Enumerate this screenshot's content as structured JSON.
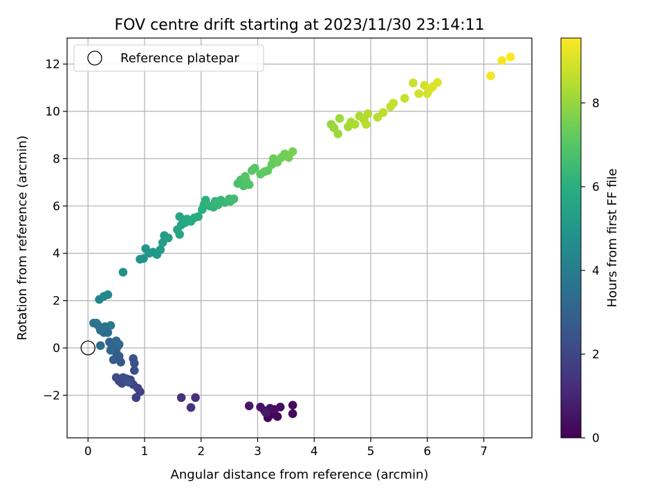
{
  "chart_data": {
    "type": "scatter",
    "title": "FOV centre drift starting at 2023/11/30 23:14:11",
    "xlabel": "Angular distance from reference (arcmin)",
    "ylabel": "Rotation from reference (arcmin)",
    "xlim": [
      -0.37,
      7.85
    ],
    "ylim": [
      -3.8,
      13.1
    ],
    "xticks": [
      0,
      1,
      2,
      3,
      4,
      5,
      6,
      7
    ],
    "yticks": [
      -2,
      0,
      2,
      4,
      6,
      8,
      10,
      12
    ],
    "ytick_labels": [
      "−2",
      "0",
      "2",
      "4",
      "6",
      "8",
      "10",
      "12"
    ],
    "grid": true,
    "legend": {
      "location": "top-left",
      "entries": [
        "Reference platepar"
      ]
    },
    "reference_point": {
      "x": 0,
      "y": 0,
      "marker": "open-circle"
    },
    "colorbar": {
      "label": "Hours from first FF file",
      "range": [
        0,
        9.55
      ],
      "ticks": [
        0,
        2,
        4,
        6,
        8
      ],
      "colormap": "viridis"
    },
    "points": [
      {
        "x": 3.18,
        "y": -2.95,
        "c": 0.05
      },
      {
        "x": 3.28,
        "y": -2.8,
        "c": 0.1
      },
      {
        "x": 3.35,
        "y": -2.9,
        "c": 0.15
      },
      {
        "x": 3.62,
        "y": -2.78,
        "c": 0.2
      },
      {
        "x": 3.62,
        "y": -2.42,
        "c": 0.25
      },
      {
        "x": 3.4,
        "y": -2.5,
        "c": 0.3
      },
      {
        "x": 3.3,
        "y": -2.6,
        "c": 0.35
      },
      {
        "x": 3.22,
        "y": -2.55,
        "c": 0.4
      },
      {
        "x": 3.12,
        "y": -2.65,
        "c": 0.45
      },
      {
        "x": 3.05,
        "y": -2.5,
        "c": 0.5
      },
      {
        "x": 2.85,
        "y": -2.45,
        "c": 0.6
      },
      {
        "x": 3.15,
        "y": -2.75,
        "c": 0.7
      },
      {
        "x": 1.9,
        "y": -2.1,
        "c": 1.3
      },
      {
        "x": 1.65,
        "y": -2.1,
        "c": 1.35
      },
      {
        "x": 1.82,
        "y": -2.52,
        "c": 1.4
      },
      {
        "x": 0.92,
        "y": -1.85,
        "c": 1.8
      },
      {
        "x": 0.85,
        "y": -2.1,
        "c": 1.85
      },
      {
        "x": 0.88,
        "y": -1.7,
        "c": 1.9
      },
      {
        "x": 0.8,
        "y": -1.55,
        "c": 2.0
      },
      {
        "x": 0.75,
        "y": -1.35,
        "c": 2.05
      },
      {
        "x": 0.68,
        "y": -1.3,
        "c": 2.1
      },
      {
        "x": 0.6,
        "y": -1.5,
        "c": 2.15
      },
      {
        "x": 0.55,
        "y": -1.4,
        "c": 2.2
      },
      {
        "x": 0.5,
        "y": -1.25,
        "c": 2.25
      },
      {
        "x": 0.62,
        "y": -1.25,
        "c": 2.3
      },
      {
        "x": 0.82,
        "y": -0.95,
        "c": 2.3
      },
      {
        "x": 0.82,
        "y": -0.65,
        "c": 2.35
      },
      {
        "x": 0.8,
        "y": -0.45,
        "c": 2.4
      },
      {
        "x": 0.72,
        "y": -1.45,
        "c": 2.4
      },
      {
        "x": 0.58,
        "y": -0.6,
        "c": 2.6
      },
      {
        "x": 0.55,
        "y": -0.35,
        "c": 2.7
      },
      {
        "x": 0.45,
        "y": -0.5,
        "c": 2.75
      },
      {
        "x": 0.5,
        "y": -0.2,
        "c": 2.8
      },
      {
        "x": 0.52,
        "y": 0.05,
        "c": 2.9
      },
      {
        "x": 0.48,
        "y": 0.25,
        "c": 3.0
      },
      {
        "x": 0.42,
        "y": 0.1,
        "c": 3.05
      },
      {
        "x": 0.38,
        "y": 0.25,
        "c": 3.1
      },
      {
        "x": 0.4,
        "y": -0.1,
        "c": 3.15
      },
      {
        "x": 0.5,
        "y": 0.3,
        "c": 3.2
      },
      {
        "x": 0.55,
        "y": 0.15,
        "c": 3.2
      },
      {
        "x": 0.22,
        "y": 0.1,
        "c": 3.3
      },
      {
        "x": 0.28,
        "y": 0.65,
        "c": 3.4
      },
      {
        "x": 0.35,
        "y": 0.65,
        "c": 3.45
      },
      {
        "x": 0.22,
        "y": 0.75,
        "c": 3.5
      },
      {
        "x": 0.3,
        "y": 0.9,
        "c": 3.55
      },
      {
        "x": 0.18,
        "y": 0.95,
        "c": 3.6
      },
      {
        "x": 0.1,
        "y": 1.05,
        "c": 3.65
      },
      {
        "x": 0.15,
        "y": 1.05,
        "c": 3.7
      },
      {
        "x": 0.4,
        "y": 0.95,
        "c": 3.75
      },
      {
        "x": 0.2,
        "y": 2.05,
        "c": 4.3
      },
      {
        "x": 0.28,
        "y": 2.18,
        "c": 4.4
      },
      {
        "x": 0.35,
        "y": 2.25,
        "c": 4.45
      },
      {
        "x": 0.62,
        "y": 3.2,
        "c": 4.7
      },
      {
        "x": 0.92,
        "y": 3.75,
        "c": 4.9
      },
      {
        "x": 0.98,
        "y": 3.78,
        "c": 4.95
      },
      {
        "x": 1.02,
        "y": 4.2,
        "c": 5.0
      },
      {
        "x": 1.08,
        "y": 4.0,
        "c": 5.05
      },
      {
        "x": 1.15,
        "y": 4.05,
        "c": 5.1
      },
      {
        "x": 1.22,
        "y": 3.95,
        "c": 5.15
      },
      {
        "x": 1.28,
        "y": 4.15,
        "c": 5.2
      },
      {
        "x": 1.32,
        "y": 4.45,
        "c": 5.25
      },
      {
        "x": 1.35,
        "y": 4.75,
        "c": 5.3
      },
      {
        "x": 1.42,
        "y": 4.65,
        "c": 5.35
      },
      {
        "x": 1.58,
        "y": 5.0,
        "c": 5.5
      },
      {
        "x": 1.62,
        "y": 4.8,
        "c": 5.55
      },
      {
        "x": 1.65,
        "y": 5.2,
        "c": 5.6
      },
      {
        "x": 1.62,
        "y": 5.55,
        "c": 5.65
      },
      {
        "x": 1.72,
        "y": 5.3,
        "c": 5.7
      },
      {
        "x": 1.75,
        "y": 5.45,
        "c": 5.75
      },
      {
        "x": 1.82,
        "y": 5.35,
        "c": 5.8
      },
      {
        "x": 1.88,
        "y": 5.5,
        "c": 5.85
      },
      {
        "x": 1.95,
        "y": 5.55,
        "c": 5.9
      },
      {
        "x": 2.02,
        "y": 5.85,
        "c": 6.0
      },
      {
        "x": 2.05,
        "y": 6.05,
        "c": 6.05
      },
      {
        "x": 2.08,
        "y": 6.25,
        "c": 6.1
      },
      {
        "x": 2.15,
        "y": 6.0,
        "c": 6.15
      },
      {
        "x": 2.22,
        "y": 5.95,
        "c": 6.2
      },
      {
        "x": 2.25,
        "y": 6.2,
        "c": 6.25
      },
      {
        "x": 2.3,
        "y": 6.05,
        "c": 6.3
      },
      {
        "x": 2.35,
        "y": 6.25,
        "c": 6.35
      },
      {
        "x": 2.42,
        "y": 6.15,
        "c": 6.4
      },
      {
        "x": 2.5,
        "y": 6.3,
        "c": 6.45
      },
      {
        "x": 2.52,
        "y": 6.2,
        "c": 6.5
      },
      {
        "x": 2.58,
        "y": 6.3,
        "c": 6.55
      },
      {
        "x": 2.65,
        "y": 6.95,
        "c": 6.7
      },
      {
        "x": 2.7,
        "y": 7.1,
        "c": 6.75
      },
      {
        "x": 2.75,
        "y": 6.85,
        "c": 6.8
      },
      {
        "x": 2.8,
        "y": 7.05,
        "c": 6.85
      },
      {
        "x": 2.85,
        "y": 6.9,
        "c": 6.9
      },
      {
        "x": 2.78,
        "y": 7.25,
        "c": 6.95
      },
      {
        "x": 2.9,
        "y": 7.5,
        "c": 7.0
      },
      {
        "x": 2.95,
        "y": 7.6,
        "c": 7.05
      },
      {
        "x": 3.05,
        "y": 7.35,
        "c": 7.1
      },
      {
        "x": 3.12,
        "y": 7.45,
        "c": 7.15
      },
      {
        "x": 3.18,
        "y": 7.5,
        "c": 7.2
      },
      {
        "x": 3.25,
        "y": 7.75,
        "c": 7.25
      },
      {
        "x": 3.28,
        "y": 8.0,
        "c": 7.3
      },
      {
        "x": 3.35,
        "y": 7.85,
        "c": 7.35
      },
      {
        "x": 3.42,
        "y": 8.05,
        "c": 7.4
      },
      {
        "x": 3.48,
        "y": 8.2,
        "c": 7.45
      },
      {
        "x": 3.55,
        "y": 8.05,
        "c": 7.5
      },
      {
        "x": 3.62,
        "y": 8.3,
        "c": 7.55
      },
      {
        "x": 4.3,
        "y": 9.45,
        "c": 8.0
      },
      {
        "x": 4.35,
        "y": 9.3,
        "c": 8.05
      },
      {
        "x": 4.42,
        "y": 9.05,
        "c": 8.1
      },
      {
        "x": 4.45,
        "y": 9.7,
        "c": 8.15
      },
      {
        "x": 4.6,
        "y": 9.35,
        "c": 8.2
      },
      {
        "x": 4.65,
        "y": 9.55,
        "c": 8.25
      },
      {
        "x": 4.72,
        "y": 9.45,
        "c": 8.3
      },
      {
        "x": 4.8,
        "y": 9.8,
        "c": 8.35
      },
      {
        "x": 4.88,
        "y": 9.65,
        "c": 8.4
      },
      {
        "x": 4.95,
        "y": 9.9,
        "c": 8.45
      },
      {
        "x": 4.92,
        "y": 9.45,
        "c": 8.5
      },
      {
        "x": 5.12,
        "y": 9.75,
        "c": 8.55
      },
      {
        "x": 5.22,
        "y": 9.95,
        "c": 8.6
      },
      {
        "x": 5.35,
        "y": 10.2,
        "c": 8.65
      },
      {
        "x": 5.4,
        "y": 10.35,
        "c": 8.7
      },
      {
        "x": 5.6,
        "y": 10.55,
        "c": 8.75
      },
      {
        "x": 5.75,
        "y": 11.2,
        "c": 8.8
      },
      {
        "x": 5.85,
        "y": 10.75,
        "c": 8.85
      },
      {
        "x": 5.95,
        "y": 11.1,
        "c": 8.9
      },
      {
        "x": 6.0,
        "y": 10.75,
        "c": 8.95
      },
      {
        "x": 6.05,
        "y": 10.95,
        "c": 9.0
      },
      {
        "x": 6.1,
        "y": 11.05,
        "c": 9.05
      },
      {
        "x": 6.18,
        "y": 11.22,
        "c": 9.1
      },
      {
        "x": 7.12,
        "y": 11.5,
        "c": 9.4
      },
      {
        "x": 7.32,
        "y": 12.15,
        "c": 9.45
      },
      {
        "x": 7.47,
        "y": 12.3,
        "c": 9.5
      }
    ]
  }
}
